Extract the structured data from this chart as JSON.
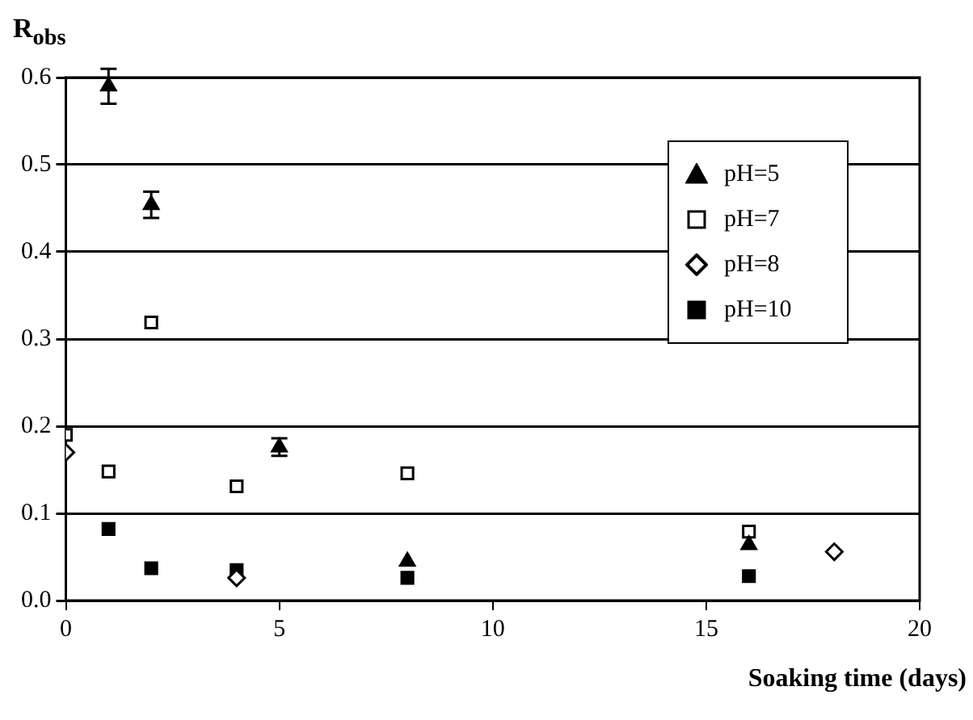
{
  "chart_data": {
    "type": "scatter",
    "xlabel": "Soaking time (days)",
    "ylabel": "R$_{obs}$",
    "xlim": [
      0,
      20
    ],
    "xticks": [
      0,
      5,
      10,
      15,
      20
    ],
    "ylim": [
      0,
      0.6
    ],
    "yticks": [
      {
        "value": 0,
        "label": "0.0"
      },
      0.1,
      0.2,
      0.3,
      0.4,
      0.5,
      0.6
    ],
    "grid": "y",
    "legend": "top right",
    "series": [
      {
        "name": "pH=5",
        "color": "#000000",
        "marker": "triangle",
        "x": [
          1,
          2,
          5,
          8,
          16
        ],
        "values": [
          0.59,
          0.454,
          0.176,
          0.045,
          0.064
        ],
        "errors": [
          0.02,
          0.015,
          0.01,
          null,
          null
        ]
      },
      {
        "name": "pH=7",
        "color": "#ffffff",
        "marker": "square",
        "x": [
          0,
          1,
          2,
          4,
          8,
          16
        ],
        "values": [
          0.19,
          0.148,
          0.319,
          0.131,
          0.146,
          0.079
        ]
      },
      {
        "name": "pH=8",
        "color": "#ffffff",
        "marker": "diamond",
        "x": [
          0,
          4,
          18
        ],
        "values": [
          0.17,
          0.026,
          0.056
        ]
      },
      {
        "name": "pH=10",
        "color": "#000000",
        "marker": "square",
        "x": [
          1,
          2,
          4,
          8,
          16
        ],
        "values": [
          0.082,
          0.037,
          0.035,
          0.026,
          0.028
        ]
      }
    ]
  }
}
